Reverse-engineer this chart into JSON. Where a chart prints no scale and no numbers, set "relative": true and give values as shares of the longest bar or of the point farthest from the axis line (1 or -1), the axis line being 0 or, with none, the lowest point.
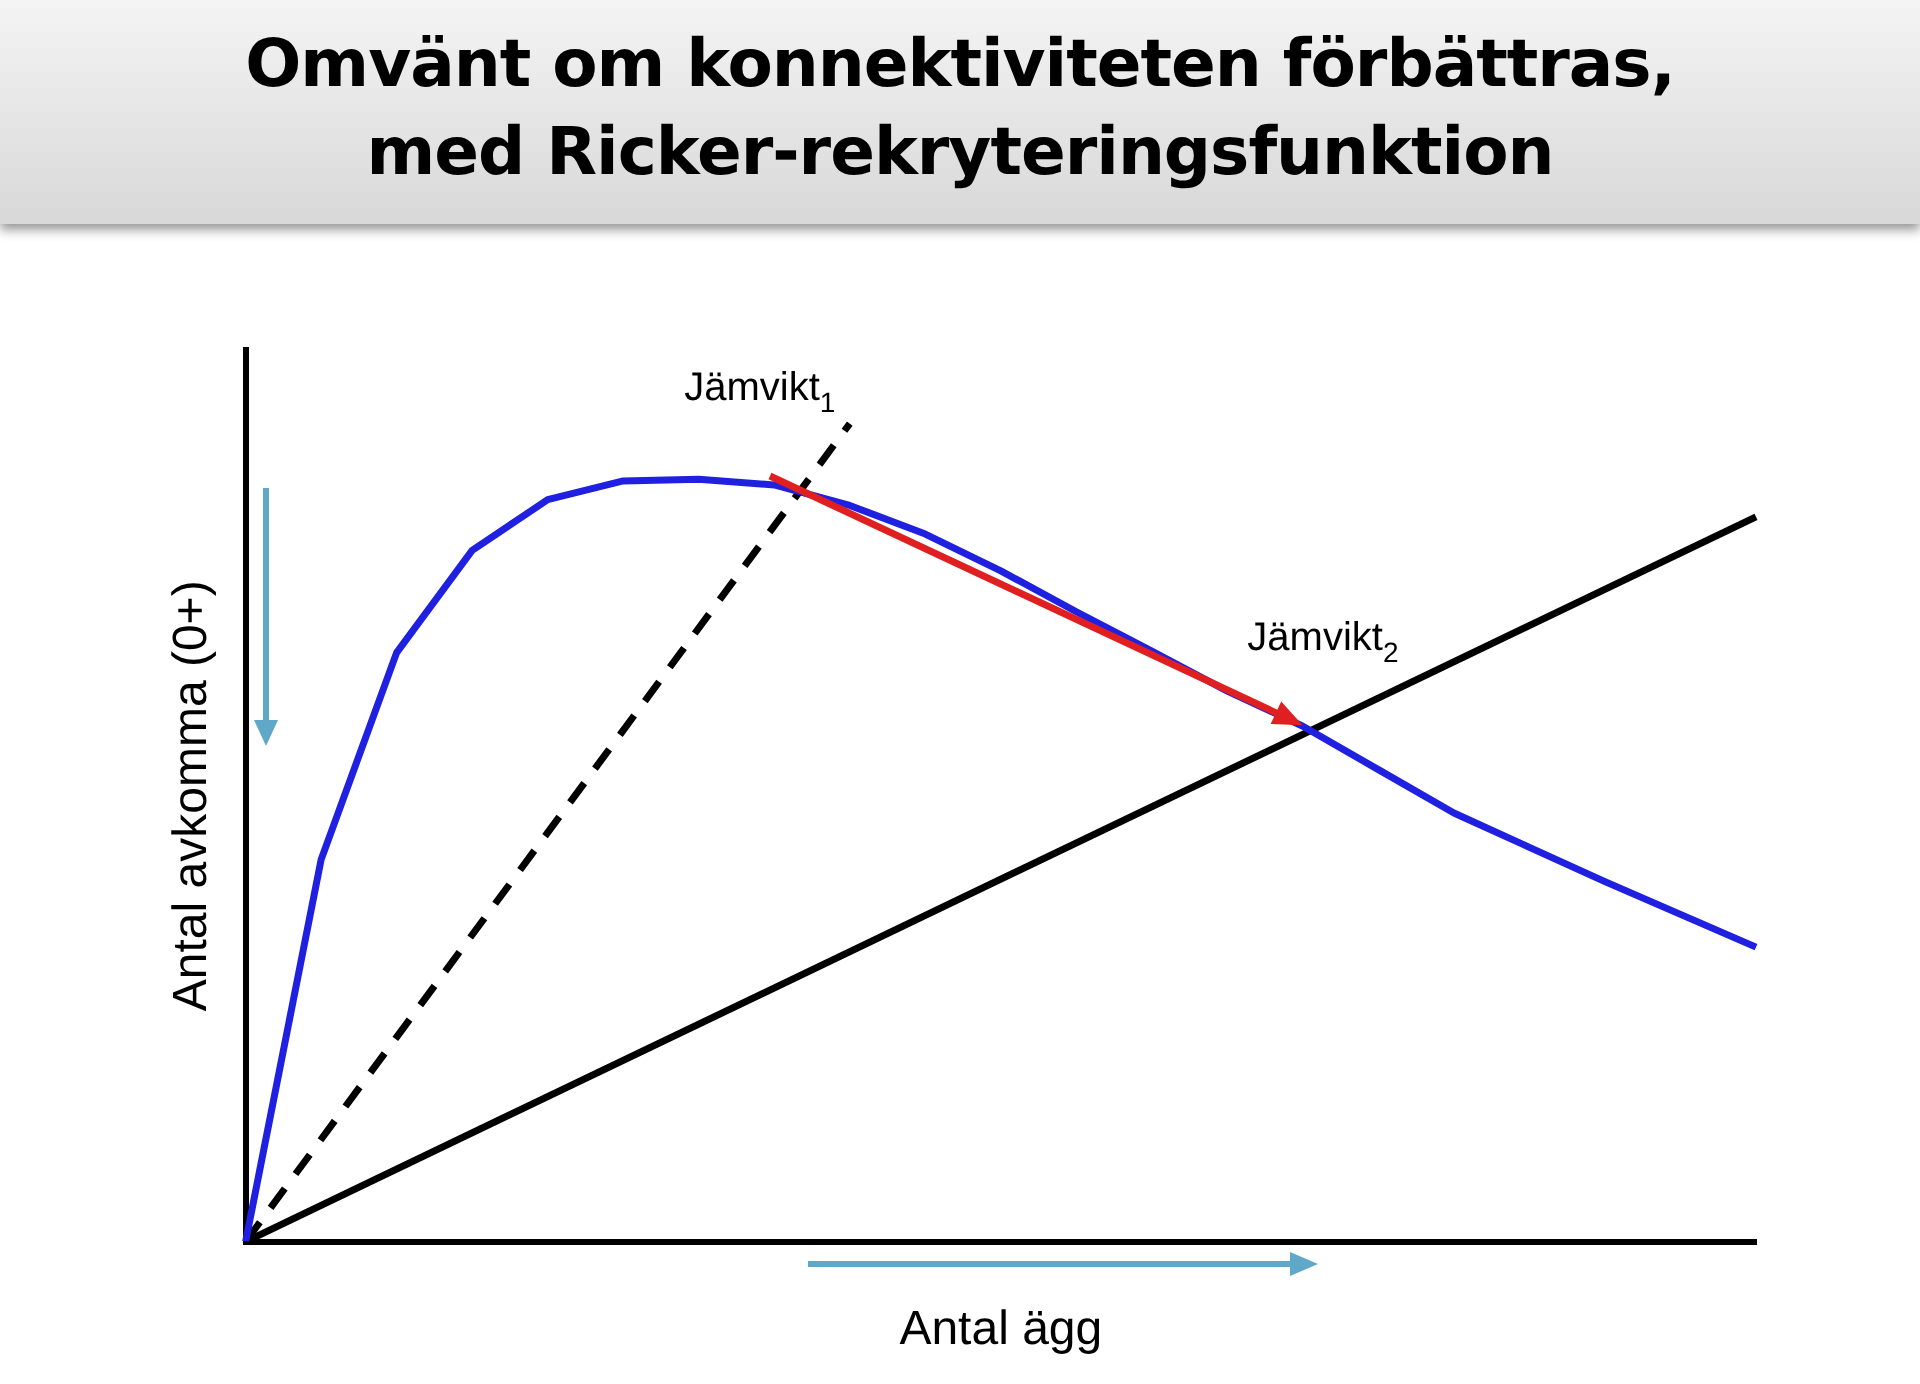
{
  "chart_data": {
    "type": "line",
    "title": "Omvänt om konnektiviteten förbättras, med Ricker-rekryteringsfunktion",
    "xlabel": "Antal ägg",
    "ylabel": "Antal avkomma (0+)",
    "relative": true,
    "marker": "none",
    "categories": [
      null,
      null,
      null,
      null,
      null,
      null,
      null,
      null,
      null,
      null,
      null,
      null,
      null,
      null,
      null,
      null,
      null,
      null,
      null,
      null,
      null
    ],
    "series": [
      {
        "color": "#2020e0",
        "values": [
          0,
          0.467,
          0.72,
          0.845,
          0.907,
          0.93,
          0.932,
          0.925,
          0.9,
          0.865,
          0.82,
          0.77,
          0.722,
          0.673,
          0.63,
          0.577,
          0.524,
          0.482,
          0.44,
          0.4,
          0.36
        ]
      },
      {
        "color": "#000000",
        "values": [
          0,
          null,
          null,
          null,
          null,
          null,
          null,
          null,
          null,
          null,
          null,
          null,
          null,
          null,
          null,
          null,
          null,
          null,
          null,
          null,
          0.886
        ]
      },
      {
        "color": "#000000",
        "line_style": "dashed",
        "values": [
          0,
          null,
          null,
          null,
          null,
          null,
          null,
          null,
          1,
          null,
          null,
          null,
          null,
          null,
          null,
          null,
          null,
          null,
          null,
          null,
          null
        ]
      }
    ],
    "annotations": [
      "Jämvikt$_{1}$",
      "Jämvikt$_{2}$"
    ]
  }
}
